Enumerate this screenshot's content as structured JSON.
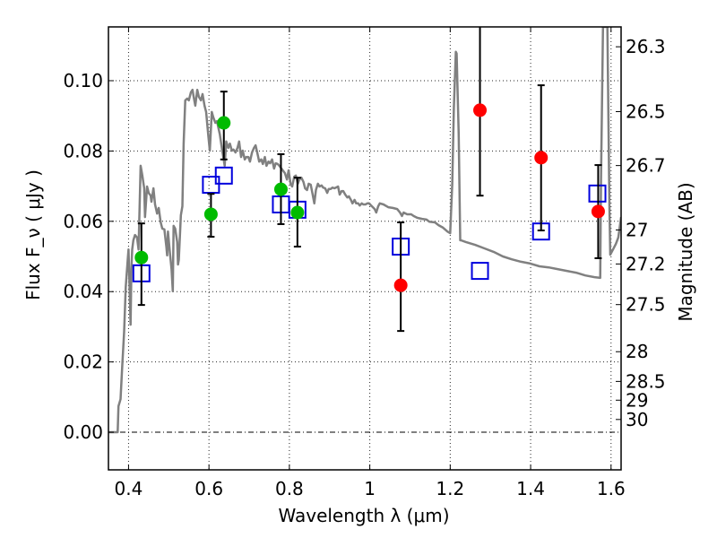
{
  "chart_data": {
    "type": "scatter",
    "title": "",
    "xlabel": "Wavelength  λ (μm)",
    "ylabel": "Flux  F_ν  ( μJy )",
    "ylabel_right": "Magnitude (AB)",
    "xlim": [
      0.35,
      1.625
    ],
    "ylim": [
      -0.0107,
      0.1153
    ],
    "grid": true,
    "legend": "none",
    "x_ticks": [
      0.4,
      0.6,
      0.8,
      1.0,
      1.2,
      1.4,
      1.6
    ],
    "x_tick_labels": [
      "0.4",
      "0.6",
      "0.8",
      "1",
      "1.2",
      "1.4",
      "1.6"
    ],
    "y_ticks": [
      0.0,
      0.02,
      0.04,
      0.06,
      0.08,
      0.1
    ],
    "y_tick_labels": [
      "0.00",
      "0.02",
      "0.04",
      "0.06",
      "0.08",
      "0.10"
    ],
    "right_ticks_mag": [
      26.3,
      26.5,
      26.7,
      27,
      27.2,
      27.5,
      28,
      28.5,
      29,
      30
    ],
    "right_tick_labels": [
      "26.3",
      "26.5",
      "26.7",
      "27",
      "27.2",
      "27.5",
      "28",
      "28.5",
      "29",
      "30"
    ],
    "mag_zero_point": 23.9,
    "colors": {
      "model_spectrum": "#808080",
      "optical_points": "#00bb00",
      "nir_points": "#ff0000",
      "model_photometry": "#0000dd",
      "error_bars": "#000000"
    },
    "series": [
      {
        "name": "Model spectrum",
        "kind": "line",
        "points": [
          [
            0.35,
            0.0
          ],
          [
            0.373,
            0.0
          ],
          [
            0.375,
            0.0074
          ],
          [
            0.38,
            0.0094
          ],
          [
            0.384,
            0.0184
          ],
          [
            0.389,
            0.0286
          ],
          [
            0.393,
            0.0413
          ],
          [
            0.398,
            0.049
          ],
          [
            0.4,
            0.052
          ],
          [
            0.405,
            0.0306
          ],
          [
            0.407,
            0.0464
          ],
          [
            0.409,
            0.052
          ],
          [
            0.412,
            0.0546
          ],
          [
            0.416,
            0.0561
          ],
          [
            0.421,
            0.0554
          ],
          [
            0.425,
            0.052
          ],
          [
            0.43,
            0.0758
          ],
          [
            0.434,
            0.0732
          ],
          [
            0.439,
            0.0694
          ],
          [
            0.441,
            0.0612
          ],
          [
            0.446,
            0.0699
          ],
          [
            0.45,
            0.0681
          ],
          [
            0.455,
            0.0673
          ],
          [
            0.457,
            0.0656
          ],
          [
            0.462,
            0.0694
          ],
          [
            0.466,
            0.0648
          ],
          [
            0.471,
            0.0622
          ],
          [
            0.475,
            0.0638
          ],
          [
            0.48,
            0.0597
          ],
          [
            0.484,
            0.0579
          ],
          [
            0.489,
            0.0577
          ],
          [
            0.494,
            0.0528
          ],
          [
            0.496,
            0.0503
          ],
          [
            0.498,
            0.0571
          ],
          [
            0.503,
            0.051
          ],
          [
            0.507,
            0.0464
          ],
          [
            0.51,
            0.0401
          ],
          [
            0.512,
            0.0587
          ],
          [
            0.516,
            0.0579
          ],
          [
            0.521,
            0.0541
          ],
          [
            0.523,
            0.0477
          ],
          [
            0.525,
            0.049
          ],
          [
            0.53,
            0.0617
          ],
          [
            0.534,
            0.0643
          ],
          [
            0.537,
            0.0821
          ],
          [
            0.541,
            0.0944
          ],
          [
            0.546,
            0.0949
          ],
          [
            0.55,
            0.0944
          ],
          [
            0.555,
            0.0967
          ],
          [
            0.559,
            0.0974
          ],
          [
            0.562,
            0.0954
          ],
          [
            0.566,
            0.0929
          ],
          [
            0.571,
            0.0974
          ],
          [
            0.575,
            0.0954
          ],
          [
            0.58,
            0.0944
          ],
          [
            0.584,
            0.0962
          ],
          [
            0.589,
            0.0929
          ],
          [
            0.593,
            0.0911
          ],
          [
            0.598,
            0.0847
          ],
          [
            0.602,
            0.0801
          ],
          [
            0.607,
            0.0911
          ],
          [
            0.611,
            0.0895
          ],
          [
            0.616,
            0.088
          ],
          [
            0.62,
            0.0885
          ],
          [
            0.627,
            0.0847
          ],
          [
            0.632,
            0.0809
          ],
          [
            0.639,
            0.0758
          ],
          [
            0.643,
            0.0827
          ],
          [
            0.648,
            0.0809
          ],
          [
            0.652,
            0.0821
          ],
          [
            0.657,
            0.0801
          ],
          [
            0.661,
            0.0804
          ],
          [
            0.666,
            0.0796
          ],
          [
            0.671,
            0.0809
          ],
          [
            0.675,
            0.0827
          ],
          [
            0.68,
            0.0783
          ],
          [
            0.684,
            0.0801
          ],
          [
            0.689,
            0.0776
          ],
          [
            0.693,
            0.0783
          ],
          [
            0.698,
            0.0783
          ],
          [
            0.702,
            0.077
          ],
          [
            0.707,
            0.0796
          ],
          [
            0.712,
            0.0809
          ],
          [
            0.716,
            0.0816
          ],
          [
            0.721,
            0.0791
          ],
          [
            0.725,
            0.077
          ],
          [
            0.73,
            0.0776
          ],
          [
            0.734,
            0.0763
          ],
          [
            0.739,
            0.0783
          ],
          [
            0.743,
            0.0758
          ],
          [
            0.748,
            0.077
          ],
          [
            0.752,
            0.0765
          ],
          [
            0.757,
            0.0776
          ],
          [
            0.762,
            0.075
          ],
          [
            0.766,
            0.0765
          ],
          [
            0.771,
            0.0763
          ],
          [
            0.775,
            0.0758
          ],
          [
            0.789,
            0.0737
          ],
          [
            0.794,
            0.0719
          ],
          [
            0.798,
            0.0745
          ],
          [
            0.803,
            0.0707
          ],
          [
            0.807,
            0.0699
          ],
          [
            0.812,
            0.0727
          ],
          [
            0.816,
            0.073
          ],
          [
            0.821,
            0.0707
          ],
          [
            0.825,
            0.0719
          ],
          [
            0.83,
            0.0724
          ],
          [
            0.835,
            0.0712
          ],
          [
            0.839,
            0.0694
          ],
          [
            0.844,
            0.0689
          ],
          [
            0.848,
            0.0707
          ],
          [
            0.853,
            0.0704
          ],
          [
            0.857,
            0.0681
          ],
          [
            0.862,
            0.0651
          ],
          [
            0.866,
            0.0689
          ],
          [
            0.871,
            0.0707
          ],
          [
            0.875,
            0.0699
          ],
          [
            0.88,
            0.0702
          ],
          [
            0.884,
            0.0696
          ],
          [
            0.889,
            0.0694
          ],
          [
            0.894,
            0.0681
          ],
          [
            0.898,
            0.0692
          ],
          [
            0.903,
            0.0692
          ],
          [
            0.907,
            0.0696
          ],
          [
            0.912,
            0.0694
          ],
          [
            0.916,
            0.0696
          ],
          [
            0.921,
            0.0699
          ],
          [
            0.925,
            0.0676
          ],
          [
            0.93,
            0.0686
          ],
          [
            0.934,
            0.0686
          ],
          [
            0.939,
            0.0676
          ],
          [
            0.944,
            0.0668
          ],
          [
            0.948,
            0.0671
          ],
          [
            0.953,
            0.0661
          ],
          [
            0.957,
            0.0651
          ],
          [
            0.962,
            0.0661
          ],
          [
            0.966,
            0.0651
          ],
          [
            0.971,
            0.0651
          ],
          [
            0.975,
            0.0645
          ],
          [
            0.98,
            0.0651
          ],
          [
            0.984,
            0.0648
          ],
          [
            0.989,
            0.0648
          ],
          [
            0.994,
            0.0651
          ],
          [
            0.998,
            0.0651
          ],
          [
            1.012,
            0.0635
          ],
          [
            1.016,
            0.0625
          ],
          [
            1.021,
            0.0643
          ],
          [
            1.025,
            0.0651
          ],
          [
            1.034,
            0.0648
          ],
          [
            1.046,
            0.064
          ],
          [
            1.057,
            0.0638
          ],
          [
            1.068,
            0.0635
          ],
          [
            1.075,
            0.0625
          ],
          [
            1.08,
            0.0615
          ],
          [
            1.084,
            0.0625
          ],
          [
            1.093,
            0.062
          ],
          [
            1.103,
            0.062
          ],
          [
            1.109,
            0.0615
          ],
          [
            1.118,
            0.061
          ],
          [
            1.13,
            0.0607
          ],
          [
            1.141,
            0.0605
          ],
          [
            1.148,
            0.0599
          ],
          [
            1.162,
            0.0597
          ],
          [
            1.171,
            0.0589
          ],
          [
            1.182,
            0.0582
          ],
          [
            1.193,
            0.0571
          ],
          [
            1.2,
            0.0566
          ],
          [
            1.205,
            0.0706
          ],
          [
            1.209,
            0.0923
          ],
          [
            1.214,
            0.1082
          ],
          [
            1.216,
            0.1077
          ],
          [
            1.221,
            0.0847
          ],
          [
            1.225,
            0.0546
          ],
          [
            1.227,
            0.0546
          ],
          [
            1.239,
            0.0541
          ],
          [
            1.262,
            0.0533
          ],
          [
            1.285,
            0.0523
          ],
          [
            1.308,
            0.0513
          ],
          [
            1.331,
            0.05
          ],
          [
            1.353,
            0.0492
          ],
          [
            1.376,
            0.0485
          ],
          [
            1.399,
            0.048
          ],
          [
            1.422,
            0.0472
          ],
          [
            1.445,
            0.0469
          ],
          [
            1.467,
            0.0464
          ],
          [
            1.49,
            0.0459
          ],
          [
            1.513,
            0.0454
          ],
          [
            1.536,
            0.0446
          ],
          [
            1.559,
            0.0441
          ],
          [
            1.573,
            0.0439
          ],
          [
            1.575,
            0.0722
          ],
          [
            1.58,
            0.1153
          ],
          [
            1.587,
            0.1153
          ],
          [
            1.591,
            0.1153
          ],
          [
            1.596,
            0.064
          ],
          [
            1.598,
            0.0505
          ],
          [
            1.605,
            0.052
          ],
          [
            1.612,
            0.0536
          ],
          [
            1.618,
            0.0554
          ],
          [
            1.625,
            0.0612
          ]
        ]
      },
      {
        "name": "Optical photometry",
        "kind": "errorbar",
        "marker": "circle",
        "x": [
          0.432,
          0.605,
          0.637,
          0.779,
          0.82
        ],
        "y": [
          0.0497,
          0.062,
          0.088,
          0.0691,
          0.0625
        ],
        "yerr_low": [
          0.0362,
          0.0556,
          0.0776,
          0.0592,
          0.0528
        ],
        "yerr_high": [
          0.0594,
          0.0678,
          0.0969,
          0.0791,
          0.0724
        ]
      },
      {
        "name": "Near-IR photometry",
        "kind": "errorbar",
        "marker": "circle",
        "x": [
          1.077,
          1.274,
          1.426,
          1.568
        ],
        "y": [
          0.0418,
          0.0916,
          0.0781,
          0.0628
        ],
        "yerr_low": [
          0.0288,
          0.0673,
          0.0574,
          0.0495
        ],
        "yerr_high": [
          0.0597,
          0.116,
          0.0987,
          0.076
        ]
      },
      {
        "name": "Model synthetic photometry",
        "kind": "scatter",
        "marker": "open-square",
        "x": [
          0.432,
          0.605,
          0.637,
          0.779,
          0.82,
          1.077,
          1.274,
          1.426,
          1.566
        ],
        "y": [
          0.0452,
          0.0704,
          0.073,
          0.0648,
          0.0633,
          0.0528,
          0.0459,
          0.0571,
          0.0679
        ]
      }
    ]
  }
}
